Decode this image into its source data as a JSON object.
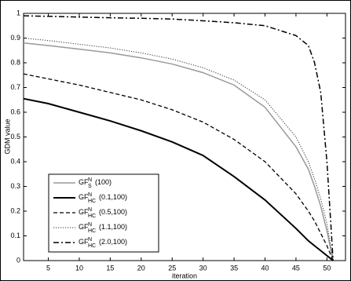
{
  "chart_data": {
    "type": "line",
    "x_label": "iteration",
    "y_label": "GDM value",
    "x": [
      1,
      5,
      10,
      15,
      20,
      25,
      30,
      35,
      40,
      45,
      47,
      48,
      49,
      50,
      51
    ],
    "xlim": [
      1,
      53
    ],
    "ylim": [
      0,
      1
    ],
    "xticks": [
      5,
      10,
      15,
      20,
      25,
      30,
      35,
      40,
      45,
      50
    ],
    "yticks": [
      0,
      0.1,
      0.2,
      0.3,
      0.4,
      0.5,
      0.6,
      0.7,
      0.8,
      0.9,
      1
    ],
    "grid": false,
    "legend": "lower-left",
    "series": [
      {
        "name": "GF",
        "sup": "N",
        "sub": "S",
        "params": "(100)",
        "color": "#999999",
        "dash": "solid",
        "width": 1.5,
        "values": [
          0.88,
          0.87,
          0.855,
          0.84,
          0.82,
          0.795,
          0.76,
          0.71,
          0.62,
          0.46,
          0.37,
          0.3,
          0.22,
          0.12,
          0
        ]
      },
      {
        "name": "GF",
        "sup": "N",
        "sub": "HC",
        "params": "(0.1,100)",
        "color": "#000000",
        "dash": "solid",
        "width": 2,
        "values": [
          0.655,
          0.635,
          0.6,
          0.565,
          0.525,
          0.48,
          0.425,
          0.34,
          0.245,
          0.13,
          0.08,
          0.06,
          0.04,
          0.02,
          0
        ]
      },
      {
        "name": "GF",
        "sup": "N",
        "sub": "HC",
        "params": "(0.5,100)",
        "color": "#000000",
        "dash": "dashed",
        "width": 1.3,
        "values": [
          0.755,
          0.735,
          0.71,
          0.68,
          0.65,
          0.61,
          0.56,
          0.49,
          0.4,
          0.27,
          0.2,
          0.16,
          0.11,
          0.06,
          0
        ]
      },
      {
        "name": "GF",
        "sup": "N",
        "sub": "HC",
        "params": "(1.1,100)",
        "color": "#333333",
        "dash": "dotted",
        "width": 1,
        "values": [
          0.9,
          0.89,
          0.875,
          0.86,
          0.84,
          0.815,
          0.78,
          0.73,
          0.65,
          0.5,
          0.4,
          0.33,
          0.25,
          0.15,
          0
        ]
      },
      {
        "name": "GF",
        "sup": "N",
        "sub": "HC",
        "params": "(2.0,100)",
        "color": "#000000",
        "dash": "dashdot",
        "width": 1.5,
        "values": [
          0.99,
          0.988,
          0.985,
          0.982,
          0.98,
          0.977,
          0.97,
          0.962,
          0.95,
          0.91,
          0.87,
          0.8,
          0.68,
          0.4,
          0
        ]
      }
    ]
  }
}
